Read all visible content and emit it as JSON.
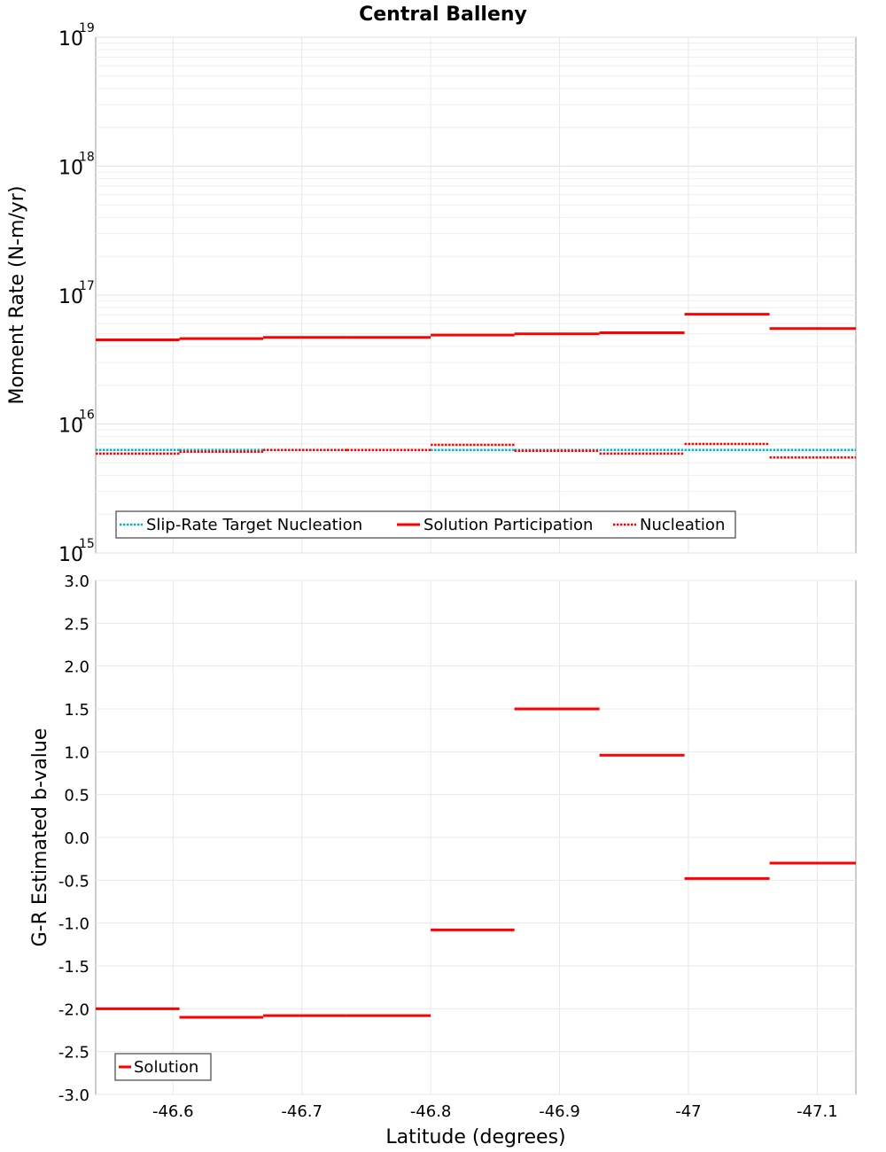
{
  "chart_data": [
    {
      "type": "line",
      "title": "Central Balleny",
      "xlabel": "",
      "ylabel": "Moment Rate (N-m/yr)",
      "yscale": "log",
      "ylim": [
        1000000000000000.0,
        1e+19
      ],
      "xlim": [
        -46.54,
        -47.13
      ],
      "grid": true,
      "legend_position": "bottom-left",
      "y_tick_labels": [
        {
          "value": 1000000000000000.0,
          "base": "10",
          "exp": "15"
        },
        {
          "value": 1e+16,
          "base": "10",
          "exp": "16"
        },
        {
          "value": 1e+17,
          "base": "10",
          "exp": "17"
        },
        {
          "value": 1e+18,
          "base": "10",
          "exp": "18"
        },
        {
          "value": 1e+19,
          "base": "10",
          "exp": "19"
        }
      ],
      "series": [
        {
          "name": "Slip-Rate Target Nucleation",
          "color": "#00b3c8",
          "style": "dotted",
          "segments": [
            {
              "x0": -46.54,
              "x1": -46.605,
              "y": 6300000000000000.0
            },
            {
              "x0": -46.605,
              "x1": -46.67,
              "y": 6300000000000000.0
            },
            {
              "x0": -46.67,
              "x1": -46.735,
              "y": 6300000000000000.0
            },
            {
              "x0": -46.735,
              "x1": -46.8,
              "y": 6300000000000000.0
            },
            {
              "x0": -46.8,
              "x1": -46.865,
              "y": 6300000000000000.0
            },
            {
              "x0": -46.865,
              "x1": -46.931,
              "y": 6300000000000000.0
            },
            {
              "x0": -46.931,
              "x1": -46.997,
              "y": 6300000000000000.0
            },
            {
              "x0": -46.997,
              "x1": -47.063,
              "y": 6300000000000000.0
            },
            {
              "x0": -47.063,
              "x1": -47.13,
              "y": 6300000000000000.0
            }
          ]
        },
        {
          "name": "Solution Participation",
          "color": "#ff0000",
          "style": "solid",
          "segments": [
            {
              "x0": -46.54,
              "x1": -46.605,
              "y": 4.5e+16
            },
            {
              "x0": -46.605,
              "x1": -46.67,
              "y": 4.6e+16
            },
            {
              "x0": -46.67,
              "x1": -46.735,
              "y": 4.7e+16
            },
            {
              "x0": -46.735,
              "x1": -46.8,
              "y": 4.7e+16
            },
            {
              "x0": -46.8,
              "x1": -46.865,
              "y": 4.9e+16
            },
            {
              "x0": -46.865,
              "x1": -46.931,
              "y": 5e+16
            },
            {
              "x0": -46.931,
              "x1": -46.997,
              "y": 5.1e+16
            },
            {
              "x0": -46.997,
              "x1": -47.063,
              "y": 7.1e+16
            },
            {
              "x0": -47.063,
              "x1": -47.13,
              "y": 5.5e+16
            }
          ]
        },
        {
          "name": "Nucleation",
          "color": "#ff0000",
          "style": "dotted",
          "segments": [
            {
              "x0": -46.54,
              "x1": -46.605,
              "y": 5900000000000000.0
            },
            {
              "x0": -46.605,
              "x1": -46.67,
              "y": 6100000000000000.0
            },
            {
              "x0": -46.67,
              "x1": -46.735,
              "y": 6300000000000000.0
            },
            {
              "x0": -46.735,
              "x1": -46.8,
              "y": 6300000000000000.0
            },
            {
              "x0": -46.8,
              "x1": -46.865,
              "y": 6900000000000000.0
            },
            {
              "x0": -46.865,
              "x1": -46.931,
              "y": 6200000000000000.0
            },
            {
              "x0": -46.931,
              "x1": -46.997,
              "y": 5900000000000000.0
            },
            {
              "x0": -46.997,
              "x1": -47.063,
              "y": 7000000000000000.0
            },
            {
              "x0": -47.063,
              "x1": -47.13,
              "y": 5500000000000000.0
            }
          ]
        }
      ]
    },
    {
      "type": "line",
      "title": "",
      "xlabel": "Latitude (degrees)",
      "ylabel": "G-R Estimated b-value",
      "ylim": [
        -3.0,
        3.0
      ],
      "xlim": [
        -46.54,
        -47.13
      ],
      "grid": true,
      "legend_position": "bottom-left",
      "x_ticks": [
        -46.6,
        -46.7,
        -46.8,
        -46.9,
        -47.0,
        -47.1
      ],
      "x_tick_labels": [
        "-46.6",
        "-46.7",
        "-46.8",
        "-46.9",
        "-47",
        "-47.1"
      ],
      "y_ticks": [
        3.0,
        2.5,
        2.0,
        1.5,
        1.0,
        0.5,
        0.0,
        -0.5,
        -1.0,
        -1.5,
        -2.0,
        -2.5,
        -3.0
      ],
      "y_tick_labels": [
        "3.0",
        "2.5",
        "2.0",
        "1.5",
        "1.0",
        "0.5",
        "0.0",
        "-0.5",
        "-1.0",
        "-1.5",
        "-2.0",
        "-2.5",
        "-3.0"
      ],
      "series": [
        {
          "name": "Solution",
          "color": "#ff0000",
          "style": "solid",
          "segments": [
            {
              "x0": -46.54,
              "x1": -46.605,
              "y": -2.0
            },
            {
              "x0": -46.605,
              "x1": -46.67,
              "y": -2.1
            },
            {
              "x0": -46.67,
              "x1": -46.735,
              "y": -2.08
            },
            {
              "x0": -46.735,
              "x1": -46.8,
              "y": -2.08
            },
            {
              "x0": -46.8,
              "x1": -46.865,
              "y": -1.08
            },
            {
              "x0": -46.865,
              "x1": -46.931,
              "y": 1.5
            },
            {
              "x0": -46.931,
              "x1": -46.997,
              "y": 0.96
            },
            {
              "x0": -46.997,
              "x1": -47.063,
              "y": -0.48
            },
            {
              "x0": -47.063,
              "x1": -47.13,
              "y": -0.3
            }
          ]
        }
      ]
    }
  ]
}
